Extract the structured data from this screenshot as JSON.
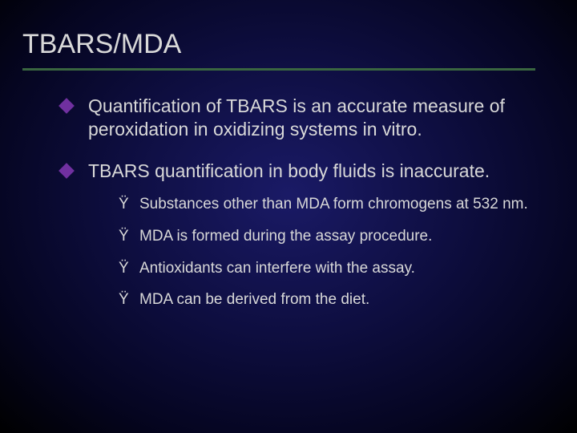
{
  "slide": {
    "title": "TBARS/MDA",
    "title_color": "#d8d8d8",
    "title_fontsize": 34,
    "rule_color": "#3a6640",
    "rule_width": 640,
    "background": {
      "type": "radial-gradient",
      "stops": [
        "#1a1a66",
        "#0d0d3d",
        "#050520",
        "#000000"
      ]
    },
    "bullet_marker": {
      "shape": "diamond",
      "color": "#7030a0",
      "size": 14
    },
    "body_fontsize": 23,
    "sub_fontsize": 19,
    "text_color": "#d8d8d8",
    "sub_marker_glyph": "Ÿ",
    "bullets": [
      {
        "text": "Quantification of TBARS is an accurate measure of peroxidation in oxidizing systems in vitro.",
        "sub": []
      },
      {
        "text": "TBARS quantification in body fluids is inaccurate.",
        "sub": [
          "Substances other than MDA form chromogens at 532 nm.",
          "MDA is formed during the assay procedure.",
          "Antioxidants can interfere with the assay.",
          "MDA can be derived from the diet."
        ]
      }
    ]
  }
}
